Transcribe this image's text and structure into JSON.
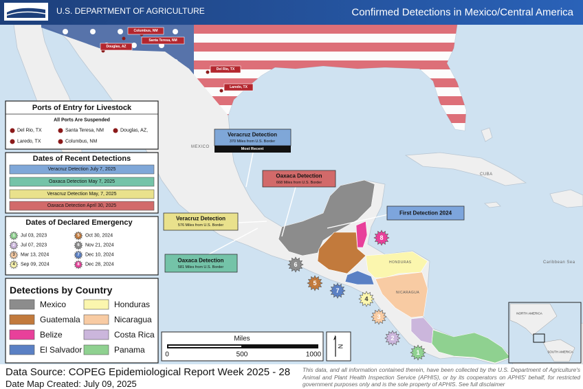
{
  "header": {
    "agency": "U.S. DEPARTMENT OF AGRICULTURE",
    "title": "Confirmed Detections in Mexico/Central America"
  },
  "map": {
    "port_labels": [
      "Columbus, NM",
      "Santa Teresa, NM",
      "Douglas, AZ",
      "Del Rio, TX",
      "Laredo, TX"
    ],
    "place_labels": [
      "MEXICO",
      "CUBA",
      "Caribbean Sea",
      "HONDURAS",
      "NICARAGUA"
    ],
    "callouts": [
      {
        "title": "Veracruz Detection",
        "detail": "370 Miles from U.S. Border",
        "note": "Most Recent"
      },
      {
        "title": "Oaxaca Detection",
        "detail": "668 Miles from U.S. Border"
      },
      {
        "title": "First Detection 2024"
      },
      {
        "title": "Veracruz Detection",
        "detail": "576 Miles from U.S. Border"
      },
      {
        "title": "Oaxaca Detection",
        "detail": "581 Miles from U.S. Border"
      }
    ],
    "markers": [
      "1",
      "2",
      "3",
      "4",
      "5",
      "6",
      "7",
      "8"
    ],
    "inset_labels": [
      "NORTH AMERICA",
      "SOUTH AMERICA"
    ]
  },
  "ports_legend": {
    "title": "Ports of Entry for Livestock",
    "subtitle": "All Ports Are Suspended",
    "items": [
      "Del Rio, TX",
      "Santa Teresa, NM",
      "Douglas, AZ,",
      "Laredo, TX",
      "Columbus, NM"
    ]
  },
  "recent_detections": {
    "title": "Dates of Recent Detections",
    "items": [
      "Veracruz Detection July 7, 2025",
      "Oaxaca Detection May 7, 2025",
      "Veracruz Detection May, 7, 2025",
      "Oaxaca Detection April 30, 2025"
    ]
  },
  "emergencies": {
    "title": "Dates of Declared Emergency",
    "items": [
      {
        "number": "1",
        "date": "Jul 03, 2023"
      },
      {
        "number": "2",
        "date": "Jul 07, 2023"
      },
      {
        "number": "3",
        "date": "Mar 13, 2024"
      },
      {
        "number": "4",
        "date": "Sep 09, 2024"
      },
      {
        "number": "5",
        "date": "Oct 30, 2024"
      },
      {
        "number": "6",
        "date": "Nov 21, 2024"
      },
      {
        "number": "7",
        "date": "Dec 10, 2024"
      },
      {
        "number": "8",
        "date": "Dec 28, 2024"
      }
    ]
  },
  "countries": {
    "title": "Detections by Country",
    "items": [
      {
        "name": "Mexico",
        "color": "#8c8c8c"
      },
      {
        "name": "Guatemala",
        "color": "#c27a3c"
      },
      {
        "name": "Belize",
        "color": "#e8409a"
      },
      {
        "name": "El Salvador",
        "color": "#5a80c4"
      },
      {
        "name": "Honduras",
        "color": "#fbf6ae"
      },
      {
        "name": "Nicaragua",
        "color": "#f8cba3"
      },
      {
        "name": "Costa Rica",
        "color": "#cbb6dc"
      },
      {
        "name": "Panama",
        "color": "#8fd190"
      }
    ]
  },
  "scale": {
    "title": "Miles",
    "labels": [
      "0",
      "500",
      "1000"
    ]
  },
  "north": "N",
  "footer": {
    "source": "Data Source: COPEG Epidemiological Report Week 2025 - 28",
    "created": "Date Map Created: July 09, 2025",
    "disclaimer": "This data, and all information contained therein, have been collected by the U.S. Department of Agriculture's Animal and Plant Health Inspection Service (APHIS), or by its cooperators on APHIS' behalf, for restricted government purposes only and is the sole property of APHIS. See full disclaimer"
  }
}
